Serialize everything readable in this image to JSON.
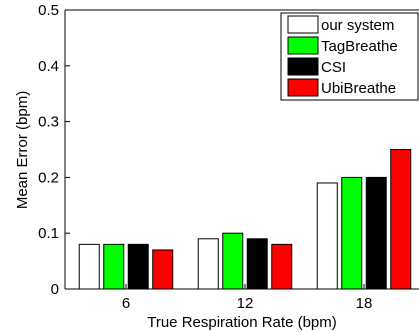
{
  "chart_data": {
    "type": "bar",
    "title": "",
    "xlabel": "True Respiration Rate (bpm)",
    "ylabel": "Mean Error (bpm)",
    "categories": [
      "6",
      "12",
      "18"
    ],
    "ylim": [
      0,
      0.5
    ],
    "yticks": [
      "0",
      "0.1",
      "0.2",
      "0.3",
      "0.4",
      "0.5"
    ],
    "grid": false,
    "legend_position": "top-right",
    "series": [
      {
        "name": "our system",
        "color": "#ffffff",
        "values": [
          0.08,
          0.09,
          0.19
        ]
      },
      {
        "name": "TagBreathe",
        "color": "#00ff00",
        "values": [
          0.08,
          0.1,
          0.2
        ]
      },
      {
        "name": "CSI",
        "color": "#000000",
        "values": [
          0.08,
          0.09,
          0.2
        ]
      },
      {
        "name": "UbiBreathe",
        "color": "#ff0000",
        "values": [
          0.07,
          0.08,
          0.25
        ]
      }
    ]
  }
}
